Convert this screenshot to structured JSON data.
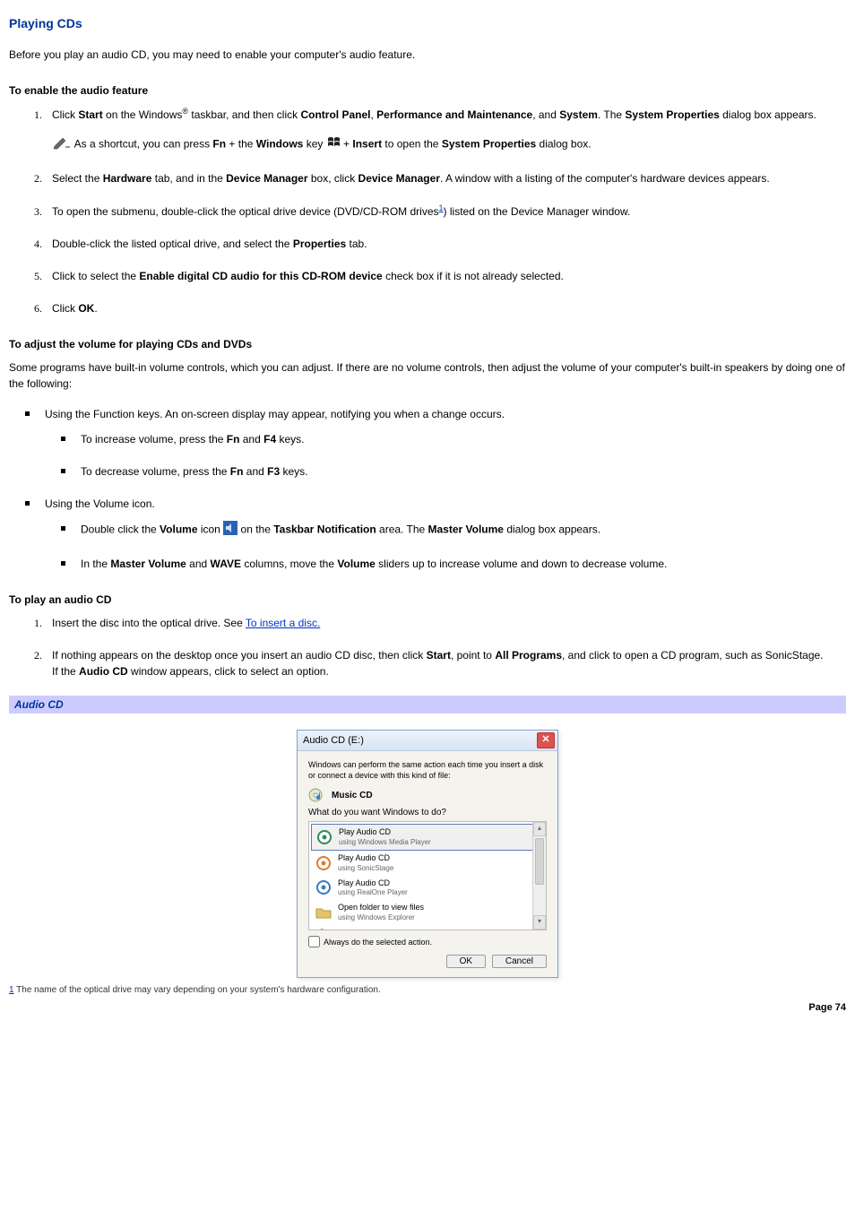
{
  "title": "Playing CDs",
  "intro": "Before you play an audio CD, you may need to enable your computer's audio feature.",
  "sections": {
    "enable": {
      "heading": "To enable the audio feature",
      "step1_a": "Click ",
      "step1_start": "Start",
      "step1_b": " on the Windows",
      "step1_reg": "®",
      "step1_c": " taskbar, and then click ",
      "step1_cp": "Control Panel",
      "step1_comma": ", ",
      "step1_pm": "Performance and Maintenance",
      "step1_and": ", and ",
      "step1_sys": "System",
      "step1_d": ". The ",
      "step1_sp": "System Properties",
      "step1_e": " dialog box appears.",
      "note_a": " As a shortcut, you can press ",
      "note_fn": "Fn",
      "note_b": " + the ",
      "note_win": "Windows",
      "note_c": " key ",
      "note_d": " + ",
      "note_ins": "Insert",
      "note_e": " to open the ",
      "note_sp": "System Properties",
      "note_f": " dialog box.",
      "step2_a": "Select the ",
      "step2_hw": "Hardware",
      "step2_b": " tab, and in the ",
      "step2_dm1": "Device Manager",
      "step2_c": " box, click ",
      "step2_dm2": "Device Manager",
      "step2_d": ". A window with a listing of the computer's hardware devices appears.",
      "step3_a": "To open the submenu, double-click the optical drive device (DVD/CD-ROM drives",
      "step3_fn": "1",
      "step3_b": ") listed on the Device Manager window.",
      "step4_a": "Double-click the listed optical drive, and select the ",
      "step4_prop": "Properties",
      "step4_b": " tab.",
      "step5_a": "Click to select the ",
      "step5_en": "Enable digital CD audio for this CD-ROM device",
      "step5_b": " check box if it is not already selected.",
      "step6_a": "Click ",
      "step6_ok": "OK",
      "step6_b": "."
    },
    "volume": {
      "heading": "To adjust the volume for playing CDs and DVDs",
      "intro": "Some programs have built-in volume controls, which you can adjust. If there are no volume controls, then adjust the volume of your computer's built-in speakers by doing one of the following:",
      "b1": "Using the Function keys. An on-screen display may appear, notifying you when a change occurs.",
      "b1a_a": "To increase volume, press the ",
      "b1a_fn": "Fn",
      "b1a_b": " and ",
      "b1a_f4": "F4",
      "b1a_c": " keys.",
      "b1b_a": "To decrease volume, press the ",
      "b1b_fn": "Fn",
      "b1b_b": " and ",
      "b1b_f3": "F3",
      "b1b_c": " keys.",
      "b2": "Using the Volume icon.",
      "b2a_a": "Double click the ",
      "b2a_vol": "Volume",
      "b2a_b": " icon ",
      "b2a_c": " on the ",
      "b2a_tn": "Taskbar Notification",
      "b2a_d": " area. The ",
      "b2a_mv": "Master Volume",
      "b2a_e": " dialog box appears.",
      "b2b_a": "In the ",
      "b2b_mv": "Master Volume",
      "b2b_b": " and ",
      "b2b_wave": "WAVE",
      "b2b_c": " columns, move the ",
      "b2b_vol": "Volume",
      "b2b_d": " sliders up to increase volume and down to decrease volume."
    },
    "play": {
      "heading": "To play an audio CD",
      "step1_a": "Insert the disc into the optical drive. See ",
      "step1_link": "To insert a disc.",
      "step2_a": "If nothing appears on the desktop once you insert an audio CD disc, then click ",
      "step2_start": "Start",
      "step2_b": ", point to ",
      "step2_ap": "All Programs",
      "step2_c": ", and click to open a CD program, such as SonicStage.",
      "step2_d": "If the ",
      "step2_ac": "Audio CD",
      "step2_e": " window appears, click to select an option."
    }
  },
  "caption": "Audio CD",
  "dialog": {
    "title": "Audio CD (E:)",
    "intro": "Windows can perform the same action each time you insert a disk or connect a device with this kind of file:",
    "type": "Music CD",
    "prompt": "What do you want Windows to do?",
    "opts": [
      {
        "t": "Play Audio CD",
        "s": "using Windows Media Player",
        "icon": "wmp",
        "color": "#2e8b57"
      },
      {
        "t": "Play Audio CD",
        "s": "using SonicStage",
        "icon": "ss",
        "color": "#e07b2e"
      },
      {
        "t": "Play Audio CD",
        "s": "using RealOne Player",
        "icon": "real",
        "color": "#3a7bbd"
      },
      {
        "t": "Open folder to view files",
        "s": "using Windows Explorer",
        "icon": "folder",
        "color": "#e4c46a"
      }
    ],
    "always": "Always do the selected action.",
    "ok": "OK",
    "cancel": "Cancel"
  },
  "footnote_num": "1",
  "footnote": " The name of the optical drive may vary depending on your system's hardware configuration.",
  "page": "Page 74"
}
